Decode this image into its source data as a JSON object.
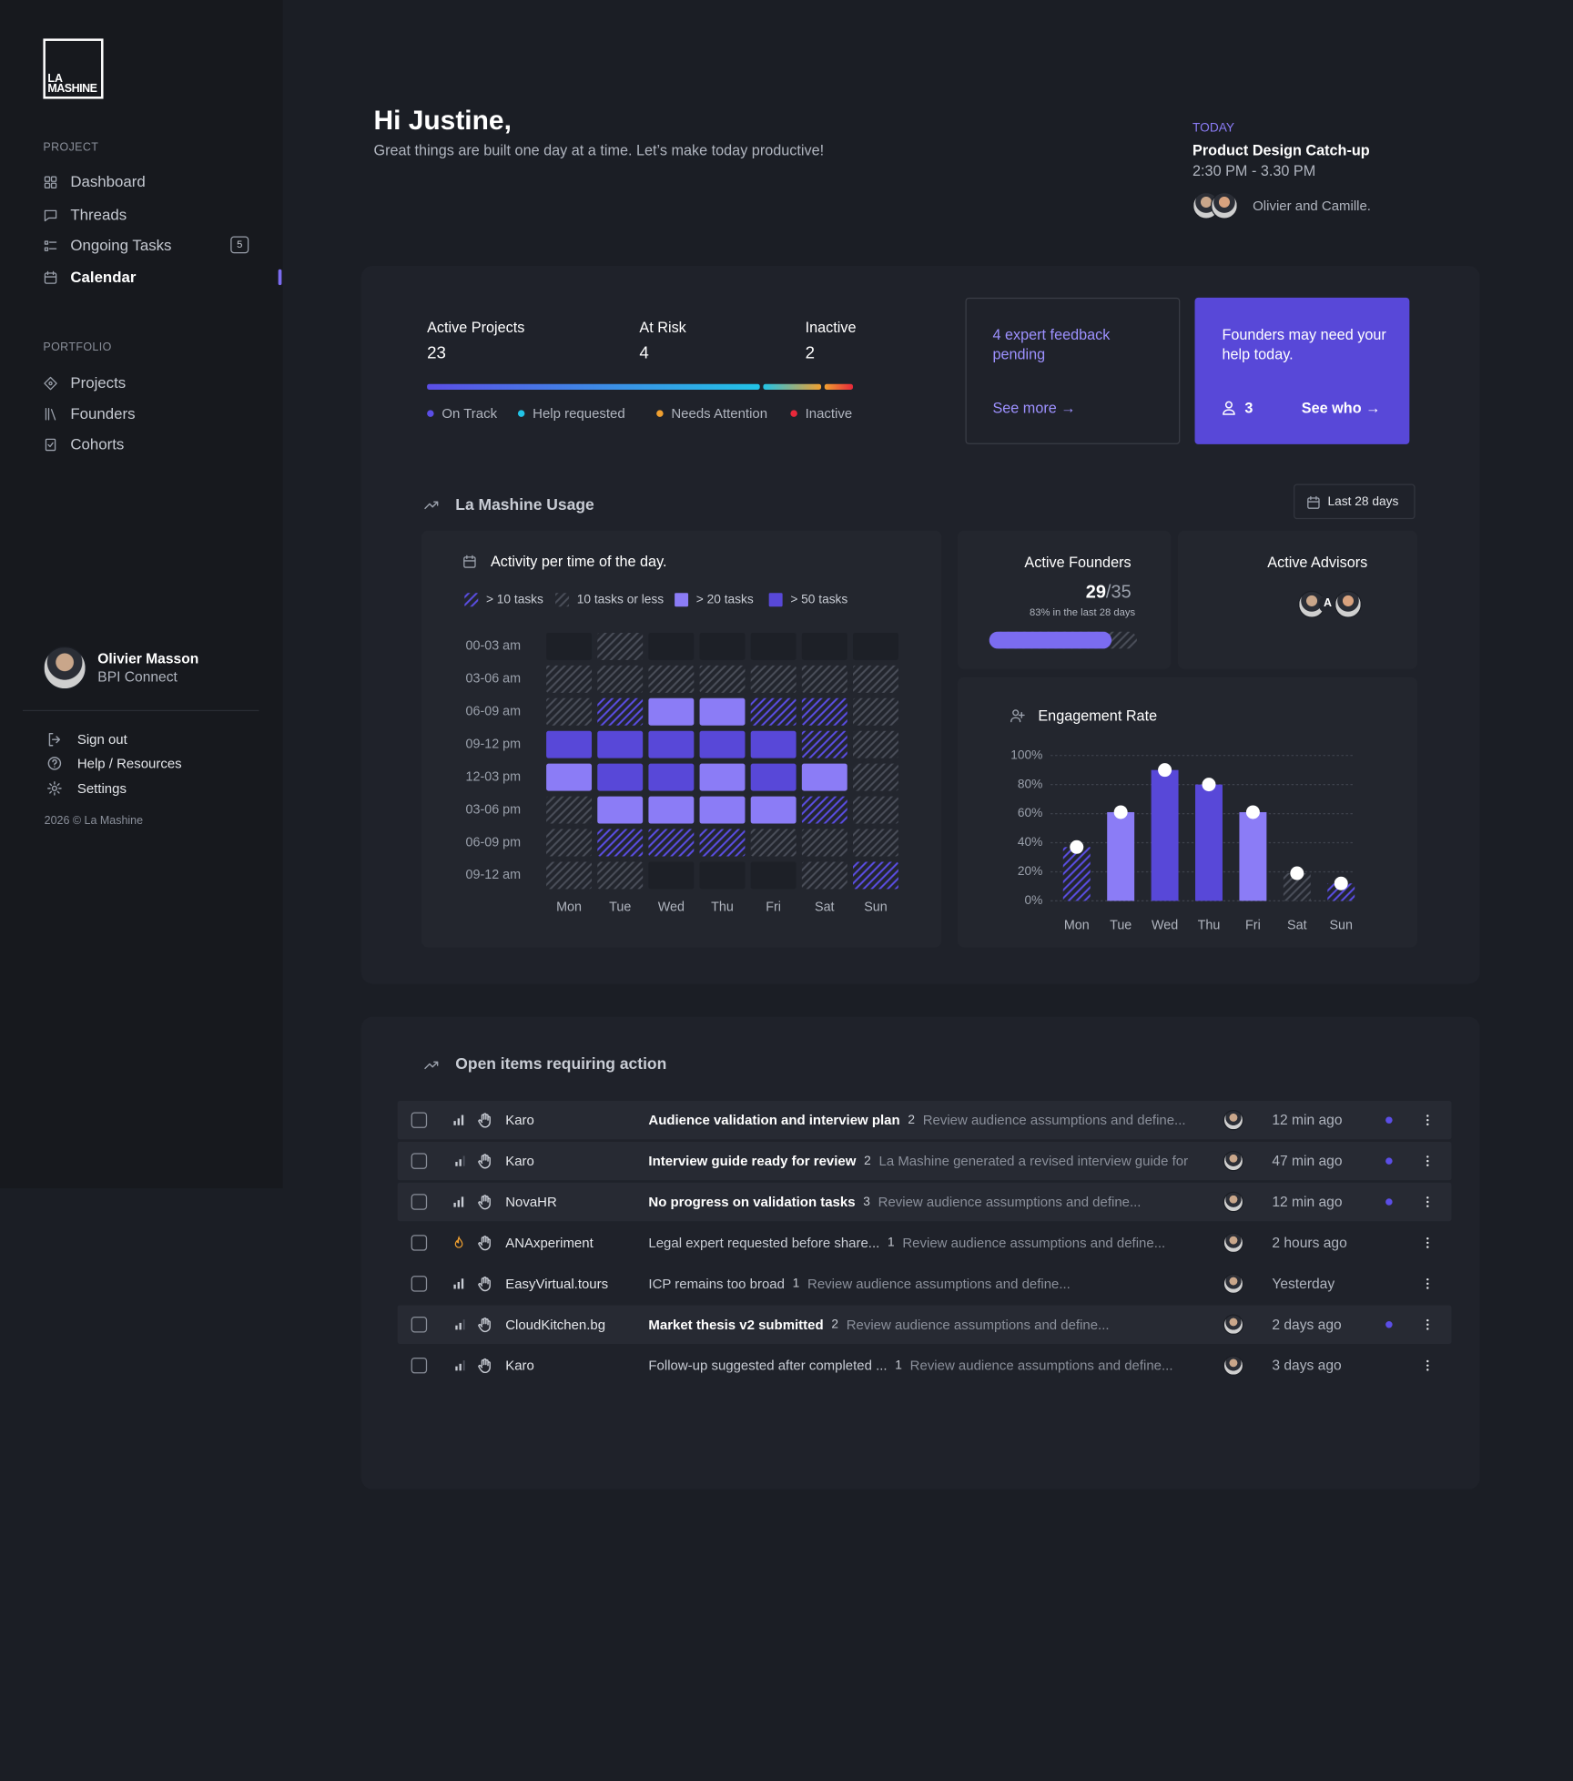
{
  "sidebar": {
    "logo": [
      "LA",
      "MASHINE"
    ],
    "sections": [
      {
        "title": "PROJECT",
        "items": [
          {
            "label": "Dashboard"
          },
          {
            "label": "Threads"
          },
          {
            "label": "Ongoing Tasks",
            "badge": 5
          },
          {
            "label": "Calendar",
            "active": true
          }
        ]
      },
      {
        "title": "PORTFOLIO",
        "items": [
          {
            "label": "Projects"
          },
          {
            "label": "Founders"
          },
          {
            "label": "Cohorts"
          }
        ]
      }
    ],
    "user": {
      "name": "Olivier Masson",
      "org": "BPI Connect"
    },
    "links": [
      "Sign out",
      "Help / Resources",
      "Settings"
    ],
    "copyright": "2026 © La Mashine"
  },
  "header": {
    "greeting": "Hi Justine,",
    "subtitle": "Great things are built one day at a time. Let’s make today productive!"
  },
  "meeting": {
    "label": "TODAY",
    "title": "Product Design Catch-up",
    "time": "2:30 PM - 3.30 PM",
    "attendees": "Olivier and Camille."
  },
  "stats": {
    "items": [
      {
        "label": "Active Projects",
        "value": 23
      },
      {
        "label": "At Risk",
        "value": 4
      },
      {
        "label": "Inactive",
        "value": 2
      }
    ],
    "legend": [
      {
        "label": "On Track",
        "color": "#5b4ee6"
      },
      {
        "label": "Help requested",
        "color": "#22c3e6"
      },
      {
        "label": "Needs Attention",
        "color": "#f0a030"
      },
      {
        "label": "Inactive",
        "color": "#e8283a"
      }
    ]
  },
  "cards": {
    "feedback": {
      "text": "4 expert feedback pending",
      "link": "See more →"
    },
    "founders": {
      "text": "Founders may need your help today.",
      "count": 3,
      "link": "See who →"
    }
  },
  "usage": {
    "title": "La Mashine Usage",
    "range": "Last 28 days",
    "active_founders": {
      "title": "Active Founders",
      "value": 29,
      "separator": "/",
      "total": 35,
      "note": "83% in the last 28 days"
    },
    "active_advisors": {
      "title": "Active Advisors",
      "initial": "A"
    }
  },
  "chart_data": [
    {
      "type": "heatmap",
      "title": "Activity per time of the day.",
      "categories": [
        "Mon",
        "Tue",
        "Wed",
        "Thu",
        "Fri",
        "Sat",
        "Sun"
      ],
      "rows": [
        "00-03 am",
        "03-06 am",
        "06-09 am",
        "09-12 pm",
        "12-03 pm",
        "03-06 pm",
        "06-09 pm",
        "09-12 am"
      ],
      "legend": [
        {
          "label": "> 10 tasks",
          "fill": "hatch",
          "color": "#5b4ee6"
        },
        {
          "label": "10 tasks or less",
          "fill": "hatch",
          "color": "#4b4f5a"
        },
        {
          "label": "> 20 tasks",
          "fill": "solid",
          "color": "#8b7cf6"
        },
        {
          "label": "> 50 tasks",
          "fill": "solid",
          "color": "#5848d8"
        }
      ],
      "cells": [
        [
          null,
          1,
          null,
          null,
          null,
          null,
          null
        ],
        [
          1,
          1,
          1,
          1,
          1,
          1,
          1
        ],
        [
          1,
          0,
          2,
          2,
          0,
          0,
          1
        ],
        [
          3,
          3,
          3,
          3,
          3,
          0,
          1
        ],
        [
          2,
          3,
          3,
          2,
          3,
          2,
          1
        ],
        [
          1,
          2,
          2,
          2,
          2,
          0,
          1
        ],
        [
          1,
          0,
          0,
          0,
          1,
          1,
          1
        ],
        [
          1,
          1,
          null,
          null,
          null,
          1,
          0
        ]
      ]
    },
    {
      "type": "bar",
      "title": "Engagement Rate",
      "categories": [
        "Mon",
        "Tue",
        "Wed",
        "Thu",
        "Fri",
        "Sat",
        "Sun"
      ],
      "values": [
        37,
        61,
        90,
        80,
        61,
        19,
        12
      ],
      "bar_fill": [
        "hatch",
        "solid",
        "solid",
        "solid",
        "solid",
        "hatch",
        "hatch"
      ],
      "bar_colors": [
        "#5b4ee6",
        "#8b7cf6",
        "#5848d8",
        "#5848d8",
        "#8b7cf6",
        "#4b4f5a",
        "#5b4ee6"
      ],
      "ylim": [
        0,
        100
      ],
      "yticks": [
        {
          "value": 0,
          "label": "0%"
        },
        {
          "value": 20,
          "label": "20%"
        },
        {
          "value": 40,
          "label": "40%"
        },
        {
          "value": 60,
          "label": "60%"
        },
        {
          "value": 80,
          "label": "80%"
        },
        {
          "value": 100,
          "label": "100%"
        }
      ],
      "grid": true
    }
  ],
  "items": {
    "title": "Open items requiring action",
    "rows": [
      {
        "company": "Karo",
        "title": "Audience validation and interview plan",
        "count": 2,
        "description": "Review audience assumptions and define...",
        "time": "12 min ago",
        "unread": true,
        "priority": "high"
      },
      {
        "company": "Karo",
        "title": "Interview guide ready for review",
        "count": 2,
        "description": "La Mashine generated a revised interview guide for",
        "time": "47 min ago",
        "unread": true,
        "priority": "medium"
      },
      {
        "company": "NovaHR",
        "title": "No progress on validation tasks",
        "count": 3,
        "description": "Review audience assumptions and define...",
        "time": "12 min ago",
        "unread": true,
        "priority": "high"
      },
      {
        "company": "ANAxperiment",
        "title": "Legal expert requested before share...",
        "count": 1,
        "description": "Review audience assumptions and define...",
        "time": "2 hours ago",
        "unread": false,
        "priority": "urgent"
      },
      {
        "company": "EasyVirtual.tours",
        "title": "ICP remains too broad",
        "count": 1,
        "description": "Review audience assumptions and define...",
        "time": "Yesterday",
        "unread": false,
        "priority": "high"
      },
      {
        "company": "CloudKitchen.bg",
        "title": "Market thesis v2 submitted",
        "count": 2,
        "description": "Review audience assumptions and define...",
        "time": "2 days ago",
        "unread": true,
        "priority": "medium"
      },
      {
        "company": "Karo",
        "title": "Follow-up suggested after completed ...",
        "count": 1,
        "description": "Review audience assumptions and define...",
        "time": "3 days ago",
        "unread": false,
        "priority": "medium"
      }
    ]
  }
}
